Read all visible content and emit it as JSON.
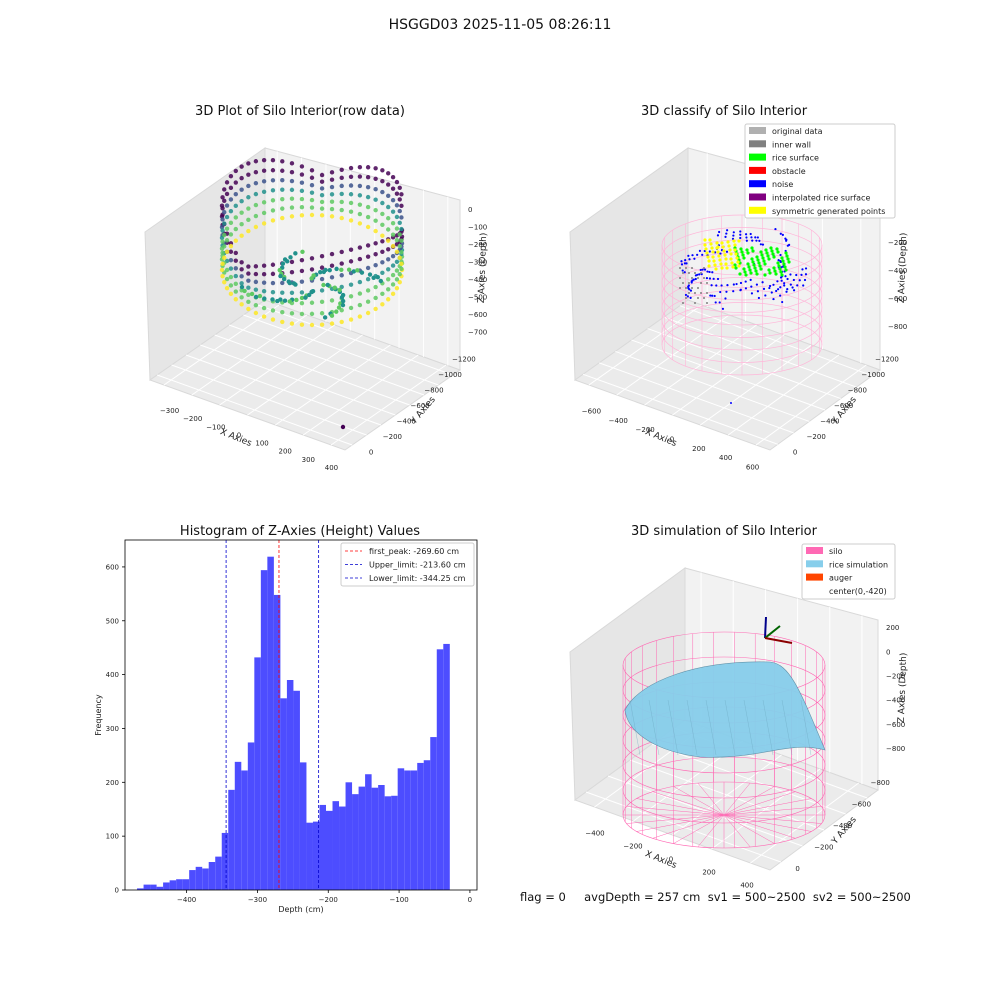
{
  "suptitle": "HSGGD03 2025-11-05 08:26:11",
  "footer": "flag = 0     avgDepth = 257 cm  sv1 = 500~2500  sv2 = 500~2500",
  "chart_data": [
    {
      "type": "scatter",
      "subtype": "3d",
      "title": "3D Plot of Silo Interior(row data)",
      "xlabel": "X Axies",
      "ylabel": "Y Axies",
      "zlabel": "Z Axies (Depth)",
      "xticks": [
        "−300",
        "−200",
        "−100",
        "0",
        "100",
        "200",
        "300",
        "400"
      ],
      "yticks": [
        "0",
        "−200",
        "−400",
        "−600",
        "−800",
        "−1000",
        "−1200"
      ],
      "zticks": [
        "0",
        "−100",
        "−200",
        "−300",
        "−400",
        "−500",
        "−600",
        "−700"
      ],
      "colormap": "viridis"
    },
    {
      "type": "scatter",
      "subtype": "3d",
      "title": "3D classify of Silo Interior",
      "xlabel": "X Axies",
      "ylabel": "Y Axies",
      "zlabel": "Z Axies (Depth)",
      "xticks": [
        "−600",
        "−400",
        "−200",
        "0",
        "200",
        "400",
        "600"
      ],
      "yticks": [
        "0",
        "−200",
        "−400",
        "−600",
        "−800",
        "−1000",
        "−1200"
      ],
      "zticks": [
        "0",
        "−200",
        "−400",
        "−600",
        "−800"
      ],
      "legend_position": "top-right",
      "legend": [
        {
          "label": "original data",
          "color": "#b0b0b0"
        },
        {
          "label": "inner wall",
          "color": "#808080"
        },
        {
          "label": "rice surface",
          "color": "#00ff00"
        },
        {
          "label": "obstacle",
          "color": "#ff0000"
        },
        {
          "label": "noise",
          "color": "#0000ff"
        },
        {
          "label": "interpolated rice surface",
          "color": "#800080"
        },
        {
          "label": "symmetric generated points",
          "color": "#ffff00"
        }
      ]
    },
    {
      "type": "bar",
      "subtype": "histogram",
      "title": "Histogram of Z-Axies (Height) Values",
      "xlabel": "Depth (cm)",
      "ylabel": "Frequency",
      "xlim": [
        -487,
        10
      ],
      "ylim": [
        0,
        650
      ],
      "xticks": [
        -400,
        -300,
        -200,
        -100,
        0
      ],
      "yticks": [
        0,
        100,
        200,
        300,
        400,
        500,
        600
      ],
      "bar_color": "#4d4dff",
      "bin_start": -470,
      "bin_width": 9.2,
      "values": [
        3,
        10,
        10,
        6,
        14,
        18,
        20,
        20,
        37,
        43,
        40,
        52,
        62,
        106,
        186,
        238,
        222,
        274,
        432,
        594,
        619,
        548,
        356,
        390,
        370,
        237,
        125,
        127,
        158,
        147,
        165,
        155,
        200,
        178,
        192,
        215,
        190,
        195,
        174,
        175,
        226,
        222,
        222,
        236,
        241,
        284,
        447,
        457
      ],
      "vlines": [
        {
          "x": -269.6,
          "color": "#ff0000",
          "label": "first_peak: -269.60 cm"
        },
        {
          "x": -213.6,
          "color": "#0000cc",
          "label": "Upper_limit: -213.60 cm"
        },
        {
          "x": -344.25,
          "color": "#0000cc",
          "label": "Lower_limit: -344.25 cm"
        }
      ],
      "legend_position": "top-right"
    },
    {
      "type": "other",
      "subtype": "3d-surface",
      "title": "3D simulation of Silo Interior",
      "xlabel": "X Axies",
      "ylabel": "Y Axies",
      "zlabel": "Z Axies (Depth)",
      "xticks": [
        "−400",
        "−200",
        "0",
        "200",
        "400"
      ],
      "yticks": [
        "0",
        "−200",
        "−400",
        "−600",
        "−800"
      ],
      "zticks": [
        "200",
        "0",
        "−200",
        "−400",
        "−600",
        "−800"
      ],
      "legend_position": "top-right",
      "legend": [
        {
          "label": "silo",
          "color": "#ff69b4"
        },
        {
          "label": "rice simulation",
          "color": "#87ceeb"
        },
        {
          "label": "auger",
          "color": "#ff4500"
        },
        {
          "label": "center(0,-420)",
          "color": ""
        }
      ]
    }
  ]
}
